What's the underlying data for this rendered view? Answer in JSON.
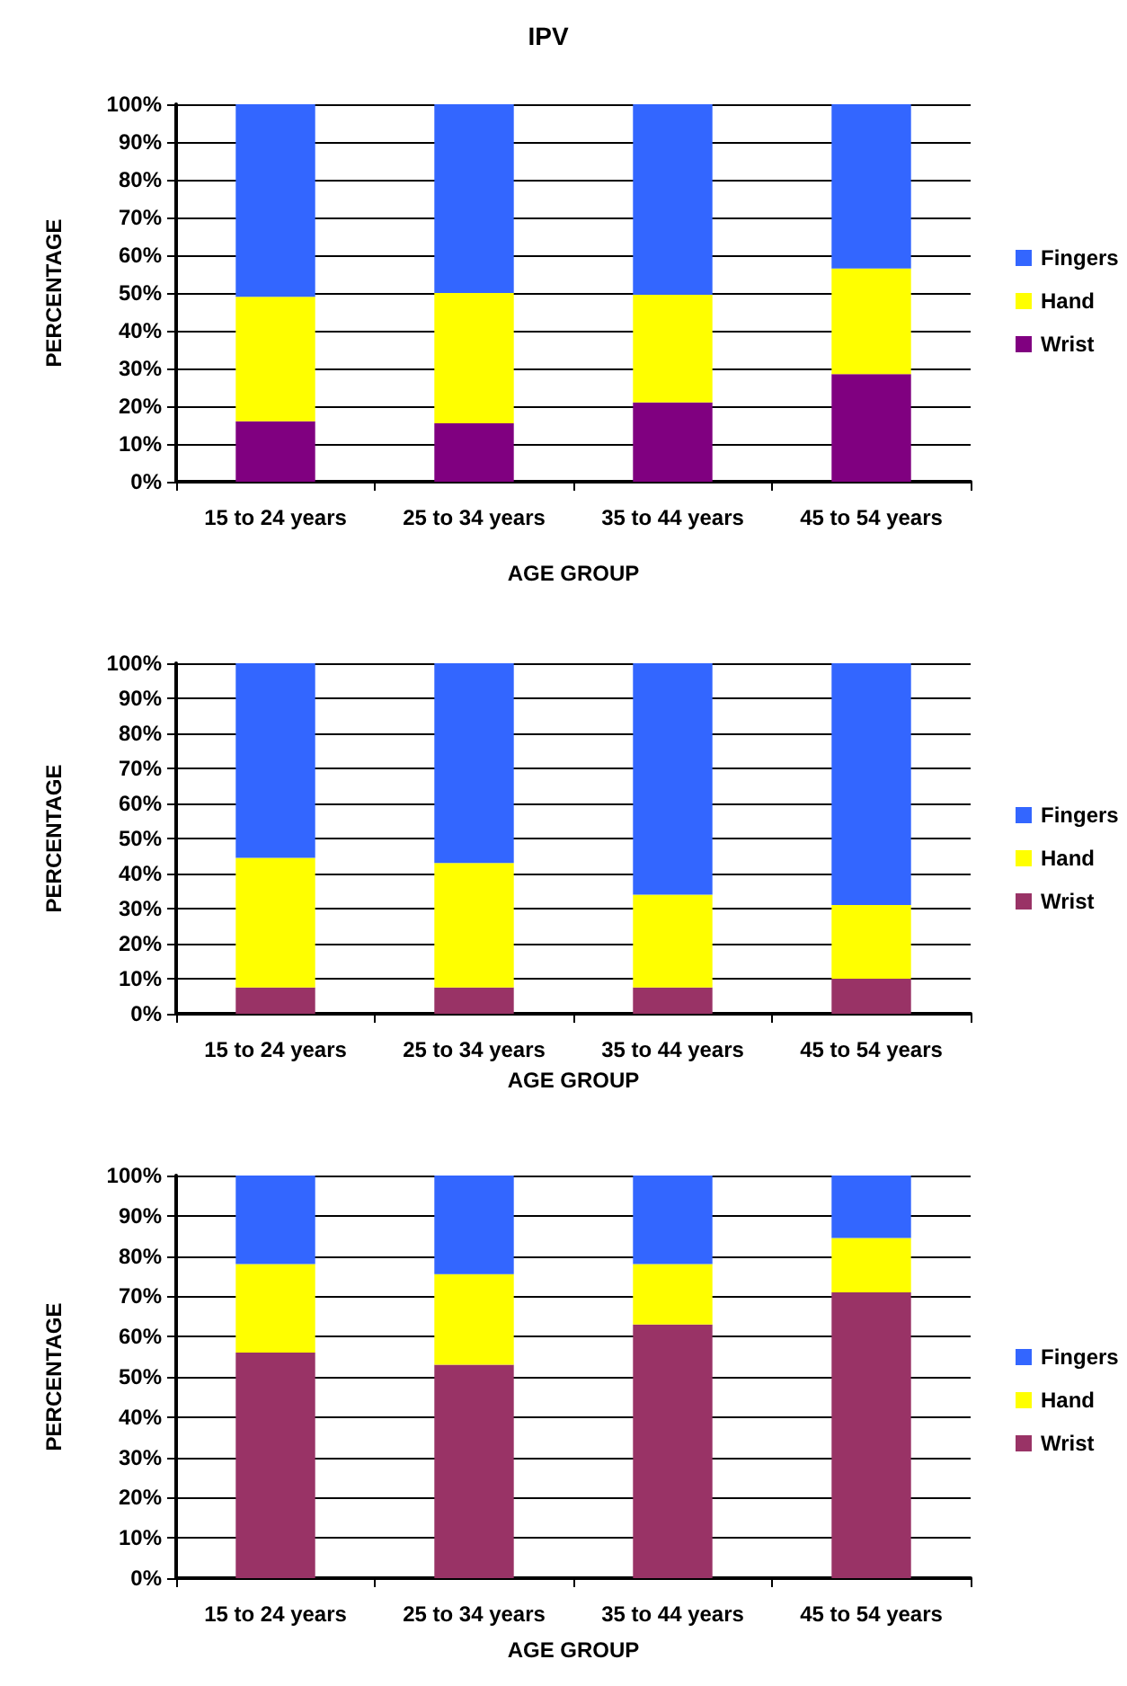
{
  "chart_data": [
    {
      "type": "bar",
      "title": "IPV",
      "xlabel": "AGE GROUP",
      "ylabel": "PERCENTAGE",
      "categories": [
        "15 to 24 years",
        "25 to 34 years",
        "35 to 44 years",
        "45 to 54 years"
      ],
      "stacked": true,
      "ylim": [
        0,
        100
      ],
      "yticks": [
        {
          "value": 0,
          "label": "0%"
        },
        {
          "value": 10,
          "label": "10%"
        },
        {
          "value": 20,
          "label": "20%"
        },
        {
          "value": 30,
          "label": "30%"
        },
        {
          "value": 40,
          "label": "40%"
        },
        {
          "value": 50,
          "label": "50%"
        },
        {
          "value": 60,
          "label": "60%"
        },
        {
          "value": 70,
          "label": "70%"
        },
        {
          "value": 80,
          "label": "80%"
        },
        {
          "value": 90,
          "label": "90%"
        },
        {
          "value": 100,
          "label": "100%"
        }
      ],
      "grid": "y",
      "legend": "right",
      "series": [
        {
          "name": "Wrist",
          "color": "#800080",
          "values": [
            16,
            15.5,
            21,
            28.5
          ]
        },
        {
          "name": "Hand",
          "color": "#ffff00",
          "values": [
            33,
            34.5,
            28.5,
            28
          ]
        },
        {
          "name": "Fingers",
          "color": "#3366ff",
          "values": [
            51,
            50,
            50.5,
            43.5
          ]
        }
      ]
    },
    {
      "type": "bar",
      "xlabel": "AGE GROUP",
      "ylabel": "PERCENTAGE",
      "categories": [
        "15 to 24 years",
        "25 to 34 years",
        "35 to 44 years",
        "45 to 54 years"
      ],
      "stacked": true,
      "ylim": [
        0,
        100
      ],
      "yticks": [
        {
          "value": 0,
          "label": "0%"
        },
        {
          "value": 10,
          "label": "10%"
        },
        {
          "value": 20,
          "label": "20%"
        },
        {
          "value": 30,
          "label": "30%"
        },
        {
          "value": 40,
          "label": "40%"
        },
        {
          "value": 50,
          "label": "50%"
        },
        {
          "value": 60,
          "label": "60%"
        },
        {
          "value": 70,
          "label": "70%"
        },
        {
          "value": 80,
          "label": "80%"
        },
        {
          "value": 90,
          "label": "90%"
        },
        {
          "value": 100,
          "label": "100%"
        }
      ],
      "grid": "y",
      "legend": "right",
      "series": [
        {
          "name": "Wrist",
          "color": "#993366",
          "values": [
            7.5,
            7.5,
            7.5,
            10
          ]
        },
        {
          "name": "Hand",
          "color": "#ffff00",
          "values": [
            37,
            35.5,
            26.5,
            21
          ]
        },
        {
          "name": "Fingers",
          "color": "#3366ff",
          "values": [
            55.5,
            57,
            66,
            69
          ]
        }
      ]
    },
    {
      "type": "bar",
      "xlabel": "AGE GROUP",
      "ylabel": "PERCENTAGE",
      "categories": [
        "15 to 24 years",
        "25 to 34 years",
        "35 to 44 years",
        "45 to 54 years"
      ],
      "stacked": true,
      "ylim": [
        0,
        100
      ],
      "yticks": [
        {
          "value": 0,
          "label": "0%"
        },
        {
          "value": 10,
          "label": "10%"
        },
        {
          "value": 20,
          "label": "20%"
        },
        {
          "value": 30,
          "label": "30%"
        },
        {
          "value": 40,
          "label": "40%"
        },
        {
          "value": 50,
          "label": "50%"
        },
        {
          "value": 60,
          "label": "60%"
        },
        {
          "value": 70,
          "label": "70%"
        },
        {
          "value": 80,
          "label": "80%"
        },
        {
          "value": 90,
          "label": "90%"
        },
        {
          "value": 100,
          "label": "100%"
        }
      ],
      "grid": "y",
      "legend": "right",
      "series": [
        {
          "name": "Wrist",
          "color": "#993366",
          "values": [
            56,
            53,
            63,
            71
          ]
        },
        {
          "name": "Hand",
          "color": "#ffff00",
          "values": [
            22,
            22.5,
            15,
            13.5
          ]
        },
        {
          "name": "Fingers",
          "color": "#3366ff",
          "values": [
            22,
            24.5,
            22,
            15.5
          ]
        }
      ]
    }
  ]
}
